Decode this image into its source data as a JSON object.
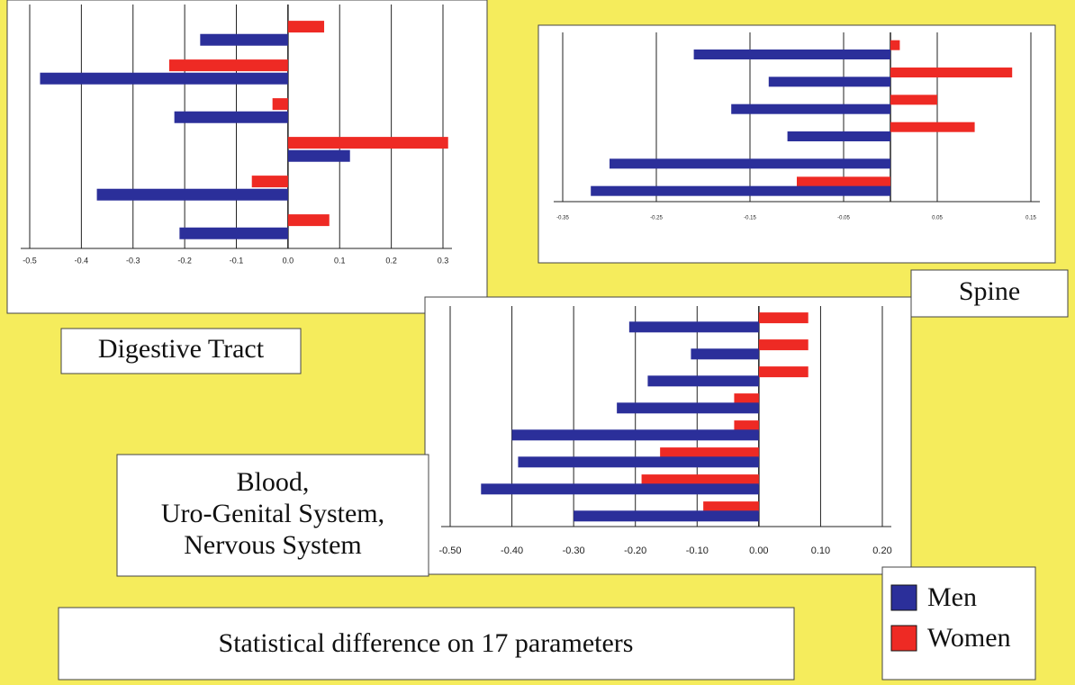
{
  "legend": [
    {
      "name": "Men",
      "color": "#2b2f9a"
    },
    {
      "name": "Women",
      "color": "#ee2a24"
    }
  ],
  "footer": "Statistical difference on 17 parameters",
  "chart_data": [
    {
      "type": "bar",
      "orientation": "horizontal",
      "title": [
        "Digestive Tract"
      ],
      "categories": [
        null,
        null,
        null,
        null,
        null,
        null
      ],
      "series": [
        {
          "values": [
            -0.17,
            -0.48,
            -0.22,
            0.12,
            -0.37,
            -0.21
          ]
        },
        {
          "values": [
            0.07,
            -0.23,
            -0.03,
            0.31,
            -0.07,
            0.08
          ]
        }
      ],
      "xlim": [
        -0.5,
        0.3
      ],
      "xticks": [
        -0.5,
        -0.4,
        -0.3,
        -0.2,
        -0.1,
        {
          "value": 0,
          "label": "0.0"
        },
        0.1,
        0.2,
        0.3
      ],
      "grid": true
    },
    {
      "type": "bar",
      "orientation": "horizontal",
      "title": [
        "Spine"
      ],
      "categories": [
        null,
        null,
        null,
        null,
        null,
        null
      ],
      "series": [
        {
          "values": [
            -0.21,
            -0.13,
            -0.17,
            -0.11,
            -0.3,
            -0.32
          ]
        },
        {
          "values": [
            0.01,
            0.13,
            0.05,
            0.09,
            0,
            -0.1
          ]
        }
      ],
      "xlim": [
        -0.35,
        0.15
      ],
      "xticks": [
        -0.35,
        -0.25,
        -0.15,
        -0.05,
        0.05,
        0.15
      ],
      "grid": true
    },
    {
      "type": "bar",
      "orientation": "horizontal",
      "title": [
        "Blood,",
        "Uro-Genital System,",
        "Nervous System"
      ],
      "categories": [
        null,
        null,
        null,
        null,
        null,
        null,
        null,
        null
      ],
      "series": [
        {
          "values": [
            -0.21,
            -0.11,
            -0.18,
            -0.23,
            -0.4,
            -0.39,
            -0.45,
            -0.3
          ]
        },
        {
          "values": [
            0.08,
            0.08,
            0.08,
            -0.04,
            -0.04,
            -0.16,
            -0.19,
            -0.09
          ]
        }
      ],
      "xlim": [
        -0.5,
        0.2
      ],
      "xticks": [
        {
          "value": -0.5,
          "label": "-0.50"
        },
        {
          "value": -0.4,
          "label": "-0.40"
        },
        {
          "value": -0.3,
          "label": "-0.30"
        },
        {
          "value": -0.2,
          "label": "-0.20"
        },
        {
          "value": -0.1,
          "label": "-0.10"
        },
        {
          "value": 0,
          "label": "0.00"
        },
        {
          "value": 0.1,
          "label": "0.10"
        },
        {
          "value": 0.2,
          "label": "0.20"
        }
      ],
      "grid": true
    }
  ]
}
